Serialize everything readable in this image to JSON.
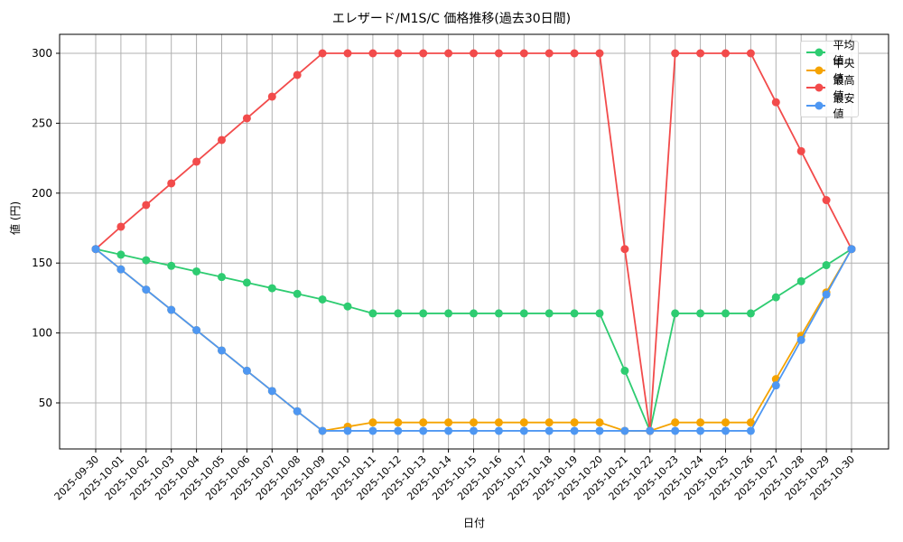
{
  "chart_data": {
    "type": "line",
    "title": "エレザード/M1S/C 価格推移(過去30日間)",
    "xlabel": "日付",
    "ylabel": "値 (円)",
    "ylim": [
      20,
      313
    ],
    "yticks": [
      50,
      100,
      150,
      200,
      250,
      300
    ],
    "grid": true,
    "legend_position": "upper right",
    "x": [
      "2025-09-30",
      "2025-10-01",
      "2025-10-02",
      "2025-10-03",
      "2025-10-04",
      "2025-10-05",
      "2025-10-06",
      "2025-10-07",
      "2025-10-08",
      "2025-10-09",
      "2025-10-10",
      "2025-10-11",
      "2025-10-12",
      "2025-10-13",
      "2025-10-14",
      "2025-10-15",
      "2025-10-16",
      "2025-10-17",
      "2025-10-18",
      "2025-10-19",
      "2025-10-20",
      "2025-10-21",
      "2025-10-22",
      "2025-10-23",
      "2025-10-24",
      "2025-10-25",
      "2025-10-26",
      "2025-10-27",
      "2025-10-28",
      "2025-10-29",
      "2025-10-30"
    ],
    "series": [
      {
        "name": "平均値",
        "color": "#2ecc71",
        "values": [
          160,
          156,
          152,
          148,
          144,
          140,
          136,
          132,
          128,
          124,
          119,
          114,
          114,
          114,
          114,
          114,
          114,
          114,
          114,
          114,
          114,
          73,
          30,
          114,
          114,
          114,
          114,
          125.5,
          137,
          148.5,
          160
        ]
      },
      {
        "name": "中央値",
        "color": "#f5a300",
        "values": [
          160,
          145.5,
          131,
          116.5,
          102,
          87.5,
          73,
          58.5,
          44,
          30,
          33,
          36,
          36,
          36,
          36,
          36,
          36,
          36,
          36,
          36,
          36,
          30,
          30,
          36,
          36,
          36,
          36,
          67,
          98,
          129,
          160
        ]
      },
      {
        "name": "最高値",
        "color": "#f24b4b",
        "values": [
          160,
          176,
          191.5,
          207,
          222.5,
          238,
          253.5,
          269,
          284.5,
          300,
          300,
          300,
          300,
          300,
          300,
          300,
          300,
          300,
          300,
          300,
          300,
          160,
          30,
          300,
          300,
          300,
          300,
          265,
          230,
          195,
          160
        ]
      },
      {
        "name": "最安値",
        "color": "#4e97f2",
        "values": [
          160,
          145.5,
          131,
          116.5,
          102,
          87.5,
          73,
          58.5,
          44,
          30,
          30,
          30,
          30,
          30,
          30,
          30,
          30,
          30,
          30,
          30,
          30,
          30,
          30,
          30,
          30,
          30,
          30,
          62.5,
          95,
          127.5,
          160
        ]
      }
    ]
  }
}
